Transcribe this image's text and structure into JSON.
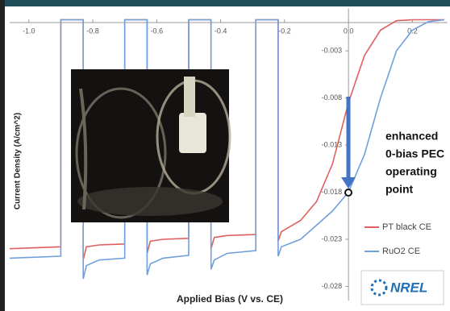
{
  "chart_data": {
    "type": "line",
    "x_label": "Applied Bias (V vs. CE)",
    "y_label": "Current Density (A/cm^2)",
    "x": [
      -1.06,
      -0.9,
      -0.9,
      -0.83,
      -0.83,
      -0.82,
      -0.78,
      -0.7,
      -0.7,
      -0.63,
      -0.63,
      -0.62,
      -0.58,
      -0.5,
      -0.5,
      -0.43,
      -0.43,
      -0.42,
      -0.38,
      -0.29,
      -0.29,
      -0.22,
      -0.22,
      -0.21,
      -0.15,
      -0.1,
      -0.05,
      0.0,
      0.05,
      0.1,
      0.15,
      0.2,
      0.25,
      0.3
    ],
    "series": [
      {
        "name": "PT black CE",
        "color": "#e06060",
        "values": [
          -0.024,
          -0.0238,
          0.0003,
          0.0003,
          -0.0252,
          -0.0238,
          -0.0236,
          -0.0235,
          0.0003,
          0.0003,
          -0.0245,
          -0.0232,
          -0.023,
          -0.0229,
          0.0003,
          0.0003,
          -0.024,
          -0.0228,
          -0.0226,
          -0.0225,
          0.0003,
          0.0003,
          -0.0232,
          -0.0222,
          -0.021,
          -0.019,
          -0.015,
          -0.0085,
          -0.0035,
          -0.0008,
          0.0002,
          0.0003,
          0.0003,
          0.0003
        ]
      },
      {
        "name": "RuO2 CE",
        "color": "#6fa0dc",
        "values": [
          -0.025,
          -0.0248,
          0.0003,
          0.0003,
          -0.0272,
          -0.0258,
          -0.0252,
          -0.025,
          0.0003,
          0.0003,
          -0.0268,
          -0.0256,
          -0.025,
          -0.0247,
          0.0003,
          0.0003,
          -0.0262,
          -0.0252,
          -0.0245,
          -0.0242,
          0.0003,
          0.0003,
          -0.0248,
          -0.0238,
          -0.023,
          -0.0215,
          -0.02,
          -0.018,
          -0.014,
          -0.008,
          -0.003,
          -0.0008,
          0.0001,
          0.0003
        ]
      }
    ],
    "xlim": [
      -1.06,
      0.31
    ],
    "ylim": [
      -0.0295,
      0.0015
    ],
    "xticks": [
      {
        "value": -1,
        "label": "-1.0"
      },
      -0.8,
      -0.6,
      -0.4,
      -0.2,
      {
        "value": 0,
        "label": "0.0"
      },
      0.2
    ],
    "yticks": [
      -0.003,
      -0.008,
      -0.013,
      -0.018,
      -0.023,
      -0.028
    ],
    "annotation": [
      "enhanced",
      "0-bias PEC",
      "operating",
      "point"
    ],
    "logo": "NREL"
  }
}
